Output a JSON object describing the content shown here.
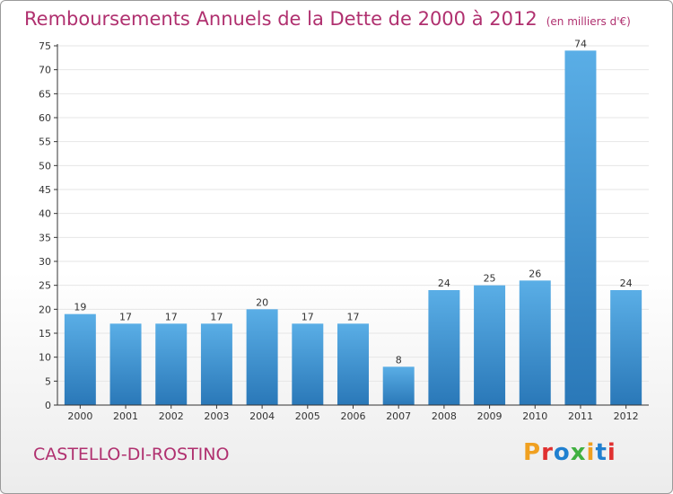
{
  "header": {
    "title": "Remboursements Annuels de la Dette de 2000 à 2012",
    "unit": "(en milliers d'€)"
  },
  "footer": {
    "commune": "CASTELLO-DI-ROSTINO",
    "logo": {
      "text": "Proxiti",
      "colors": [
        "#f0a020",
        "#e03030",
        "#2080d0",
        "#40b040",
        "#f0a020",
        "#2080d0",
        "#e03030"
      ]
    }
  },
  "colors": {
    "bar_light": "#5aaee6",
    "bar_dark": "#2a78b8",
    "axis": "#333333",
    "grid": "#e6e6e6",
    "title": "#b0306f"
  },
  "chart_data": {
    "type": "bar",
    "categories": [
      "2000",
      "2001",
      "2002",
      "2003",
      "2004",
      "2005",
      "2006",
      "2007",
      "2008",
      "2009",
      "2010",
      "2011",
      "2012"
    ],
    "values": [
      19,
      17,
      17,
      17,
      20,
      17,
      17,
      8,
      24,
      25,
      26,
      74,
      24
    ],
    "yticks": [
      0,
      5,
      10,
      15,
      20,
      25,
      30,
      35,
      40,
      45,
      50,
      55,
      60,
      65,
      70,
      75
    ],
    "ylim": [
      0,
      75
    ],
    "grid": true,
    "title": "Remboursements Annuels de la Dette de 2000 à 2012",
    "xlabel": "",
    "ylabel": ""
  }
}
